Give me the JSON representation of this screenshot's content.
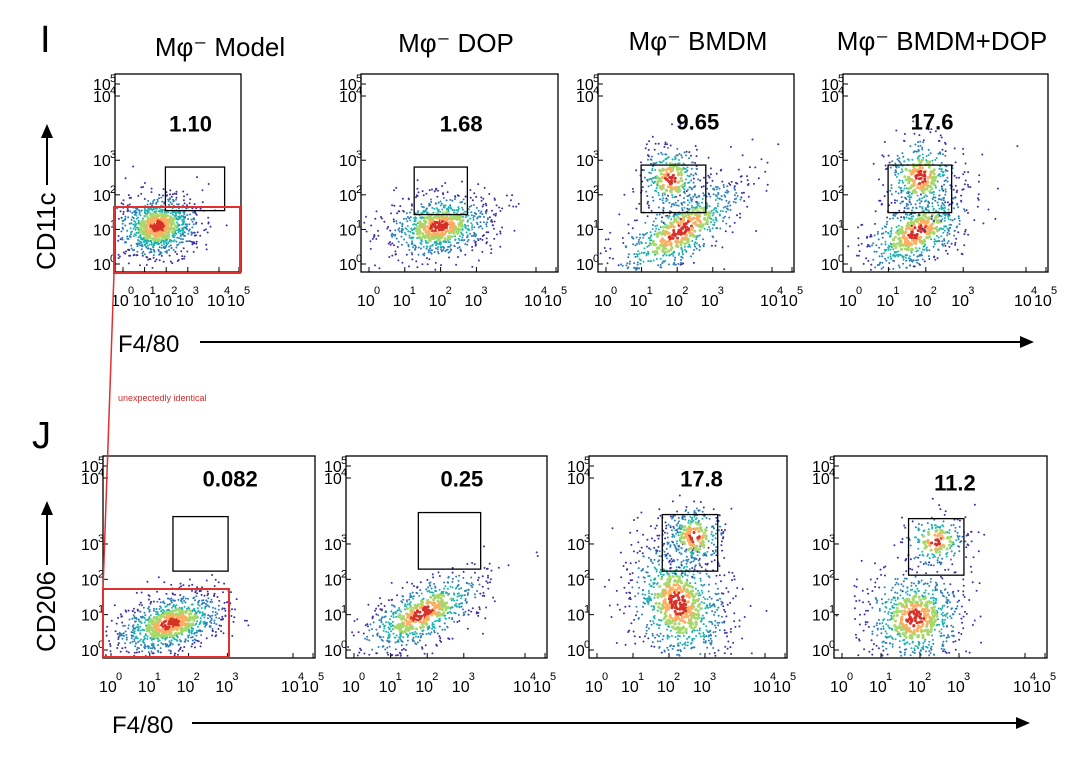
{
  "chart_data": [
    {
      "type": "scatter",
      "panel": "I",
      "ylabel": "CD11c",
      "xlabel": "F4/80",
      "x_scale": "log",
      "y_scale": "log",
      "x_ticks": [
        "0",
        "1",
        "2",
        "3",
        "4",
        "5"
      ],
      "y_ticks": [
        "0",
        "1",
        "2",
        "3",
        "4",
        "5"
      ],
      "tick_base": "10",
      "plots": [
        {
          "title": "Mφ⁻ Model",
          "gate_percent": "1.10"
        },
        {
          "title": "Mφ⁻ DOP",
          "gate_percent": "1.68"
        },
        {
          "title": "Mφ⁻ BMDM",
          "gate_percent": "9.65"
        },
        {
          "title": "Mφ⁻ BMDM+DOP",
          "gate_percent": "17.6"
        }
      ]
    },
    {
      "type": "scatter",
      "panel": "J",
      "ylabel": "CD206",
      "xlabel": "F4/80",
      "x_scale": "log",
      "y_scale": "log",
      "x_ticks": [
        "0",
        "1",
        "2",
        "3",
        "4",
        "5"
      ],
      "y_ticks": [
        "0",
        "1",
        "2",
        "3",
        "4",
        "5"
      ],
      "tick_base": "10",
      "plots": [
        {
          "gate_percent": "0.082"
        },
        {
          "gate_percent": "0.25"
        },
        {
          "gate_percent": "17.8"
        },
        {
          "gate_percent": "11.2"
        }
      ]
    }
  ],
  "annotation": {
    "text": "unexpectedly identical",
    "color": "#d62a2a"
  },
  "colors": {
    "highlight": "#e03030",
    "gate": "#000000"
  }
}
